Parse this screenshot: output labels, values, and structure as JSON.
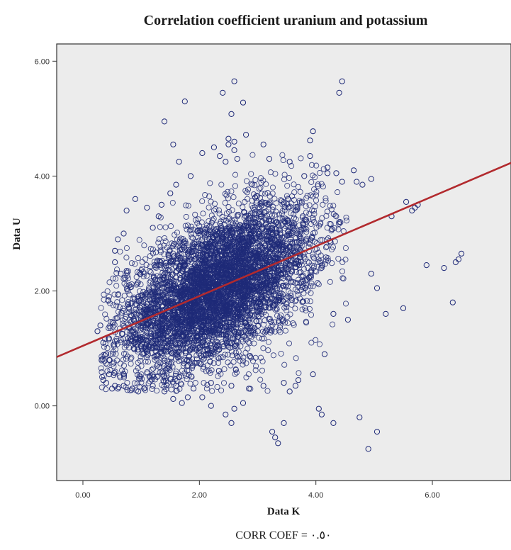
{
  "chart_data": {
    "type": "scatter",
    "title": "Correlation coefficient uranium and potassium",
    "xlabel": "Data K",
    "ylabel": "Data U",
    "xlim": [
      -0.45,
      7.35
    ],
    "ylim": [
      -1.3,
      6.3
    ],
    "x_ticks": [
      "0.00",
      "2.00",
      "4.00",
      "6.00"
    ],
    "x_tick_values": [
      0,
      2,
      4,
      6
    ],
    "y_ticks": [
      "0.00",
      "2.00",
      "4.00",
      "6.00"
    ],
    "y_tick_values": [
      0,
      2,
      4,
      6
    ],
    "grid": false,
    "annotation": "CORR COEF = ٠.٥٠",
    "marker": "open-circle",
    "colors": {
      "points": "#1f2a78",
      "fit_line": "#b22a2e",
      "plot_background": "#ececec",
      "frame": "#333333"
    },
    "fit_line": {
      "label": "",
      "x": [
        -0.45,
        7.35
      ],
      "y": [
        0.85,
        4.23
      ]
    },
    "series": [
      {
        "x": [
          2.6,
          4.45,
          2.4,
          1.75,
          2.75,
          4.4,
          2.55,
          1.4,
          2.8,
          2.5,
          2.5,
          2.6,
          2.6,
          3.1,
          3.95,
          3.9,
          2.35,
          2.45,
          2.65,
          2.05,
          1.55,
          4.65,
          4.7,
          4.8,
          3.2,
          3.9,
          4.2,
          4.35,
          4.95,
          5.3,
          5.7,
          5.75,
          5.65,
          5.55,
          5.9,
          6.2,
          6.45,
          6.5,
          6.4,
          6.35,
          5.5,
          5.2,
          5.05,
          4.95,
          4.55,
          3.65,
          3.55,
          3.25,
          3.3,
          3.35,
          3.45,
          4.05,
          4.1,
          4.3,
          4.75,
          4.9,
          5.05,
          2.6,
          2.45,
          2.2,
          2.55,
          2.75,
          2.05,
          1.55,
          1.7,
          1.8,
          0.25,
          0.3,
          0.35,
          0.4,
          0.45,
          0.45,
          0.4,
          0.35,
          0.5,
          0.55,
          0.6,
          0.7,
          0.85,
          0.95,
          1.05,
          1.2,
          1.4,
          1.6,
          1.9,
          2.2,
          2.55,
          2.85,
          3.1,
          3.45,
          3.7,
          3.95,
          4.15,
          4.3,
          0.55,
          0.6,
          0.7,
          0.55,
          0.65,
          0.8,
          0.95,
          0.75,
          1.1,
          0.9,
          1.3,
          1.5,
          1.2,
          1.6,
          1.85,
          1.35,
          0.75,
          1.65,
          2.25,
          3.55,
          3.8,
          4.2,
          4.45
        ],
        "y": [
          5.65,
          5.65,
          5.45,
          5.3,
          5.28,
          5.45,
          5.08,
          4.95,
          4.72,
          4.65,
          4.55,
          4.6,
          4.45,
          4.55,
          4.78,
          4.62,
          4.35,
          4.25,
          4.3,
          4.4,
          4.55,
          4.1,
          3.9,
          3.85,
          4.3,
          4.35,
          4.15,
          4.05,
          3.95,
          3.3,
          3.45,
          3.5,
          3.4,
          3.55,
          2.45,
          2.4,
          2.55,
          2.65,
          2.5,
          1.8,
          1.7,
          1.6,
          2.05,
          2.3,
          1.5,
          0.35,
          0.25,
          -0.45,
          -0.55,
          -0.65,
          -0.3,
          -0.05,
          -0.15,
          -0.3,
          -0.2,
          -0.75,
          -0.45,
          -0.05,
          -0.15,
          0.0,
          -0.3,
          0.05,
          0.15,
          0.12,
          0.05,
          0.15,
          1.3,
          1.4,
          1.1,
          0.9,
          0.8,
          0.55,
          0.4,
          0.45,
          0.3,
          0.35,
          0.3,
          0.35,
          0.3,
          0.25,
          0.3,
          0.35,
          0.25,
          0.35,
          0.3,
          0.4,
          0.35,
          0.3,
          0.35,
          0.4,
          0.45,
          0.55,
          0.9,
          1.6,
          2.7,
          2.9,
          3.0,
          2.5,
          2.3,
          2.1,
          1.9,
          3.4,
          3.45,
          3.6,
          3.3,
          3.7,
          3.1,
          3.85,
          4.0,
          3.5,
          2.35,
          4.25,
          4.5,
          4.25,
          4.0,
          4.05,
          3.9
        ]
      }
    ]
  }
}
